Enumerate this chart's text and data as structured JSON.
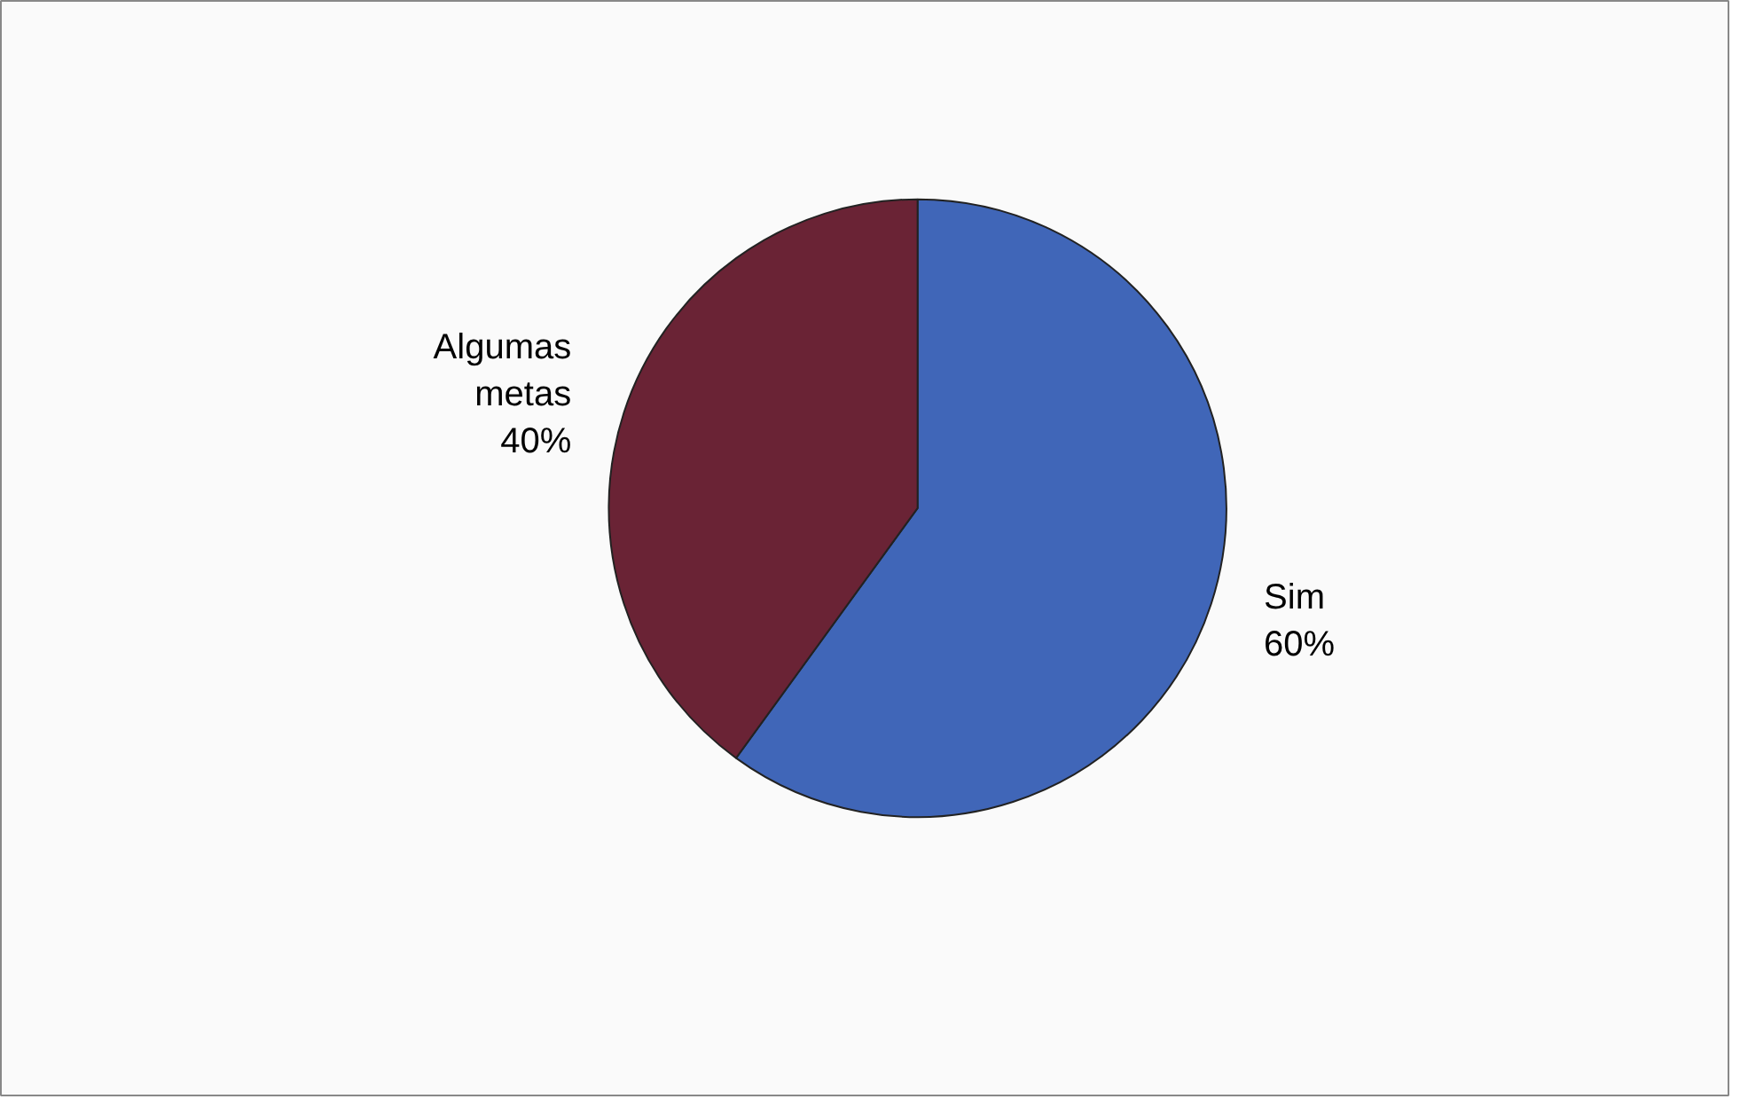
{
  "chart_data": {
    "type": "pie",
    "categories": [
      "Sim",
      "Algumas metas"
    ],
    "values": [
      60,
      40
    ],
    "colors": [
      "#4066b8",
      "#6a2335"
    ],
    "value_labels": [
      "60%",
      "40%"
    ]
  }
}
